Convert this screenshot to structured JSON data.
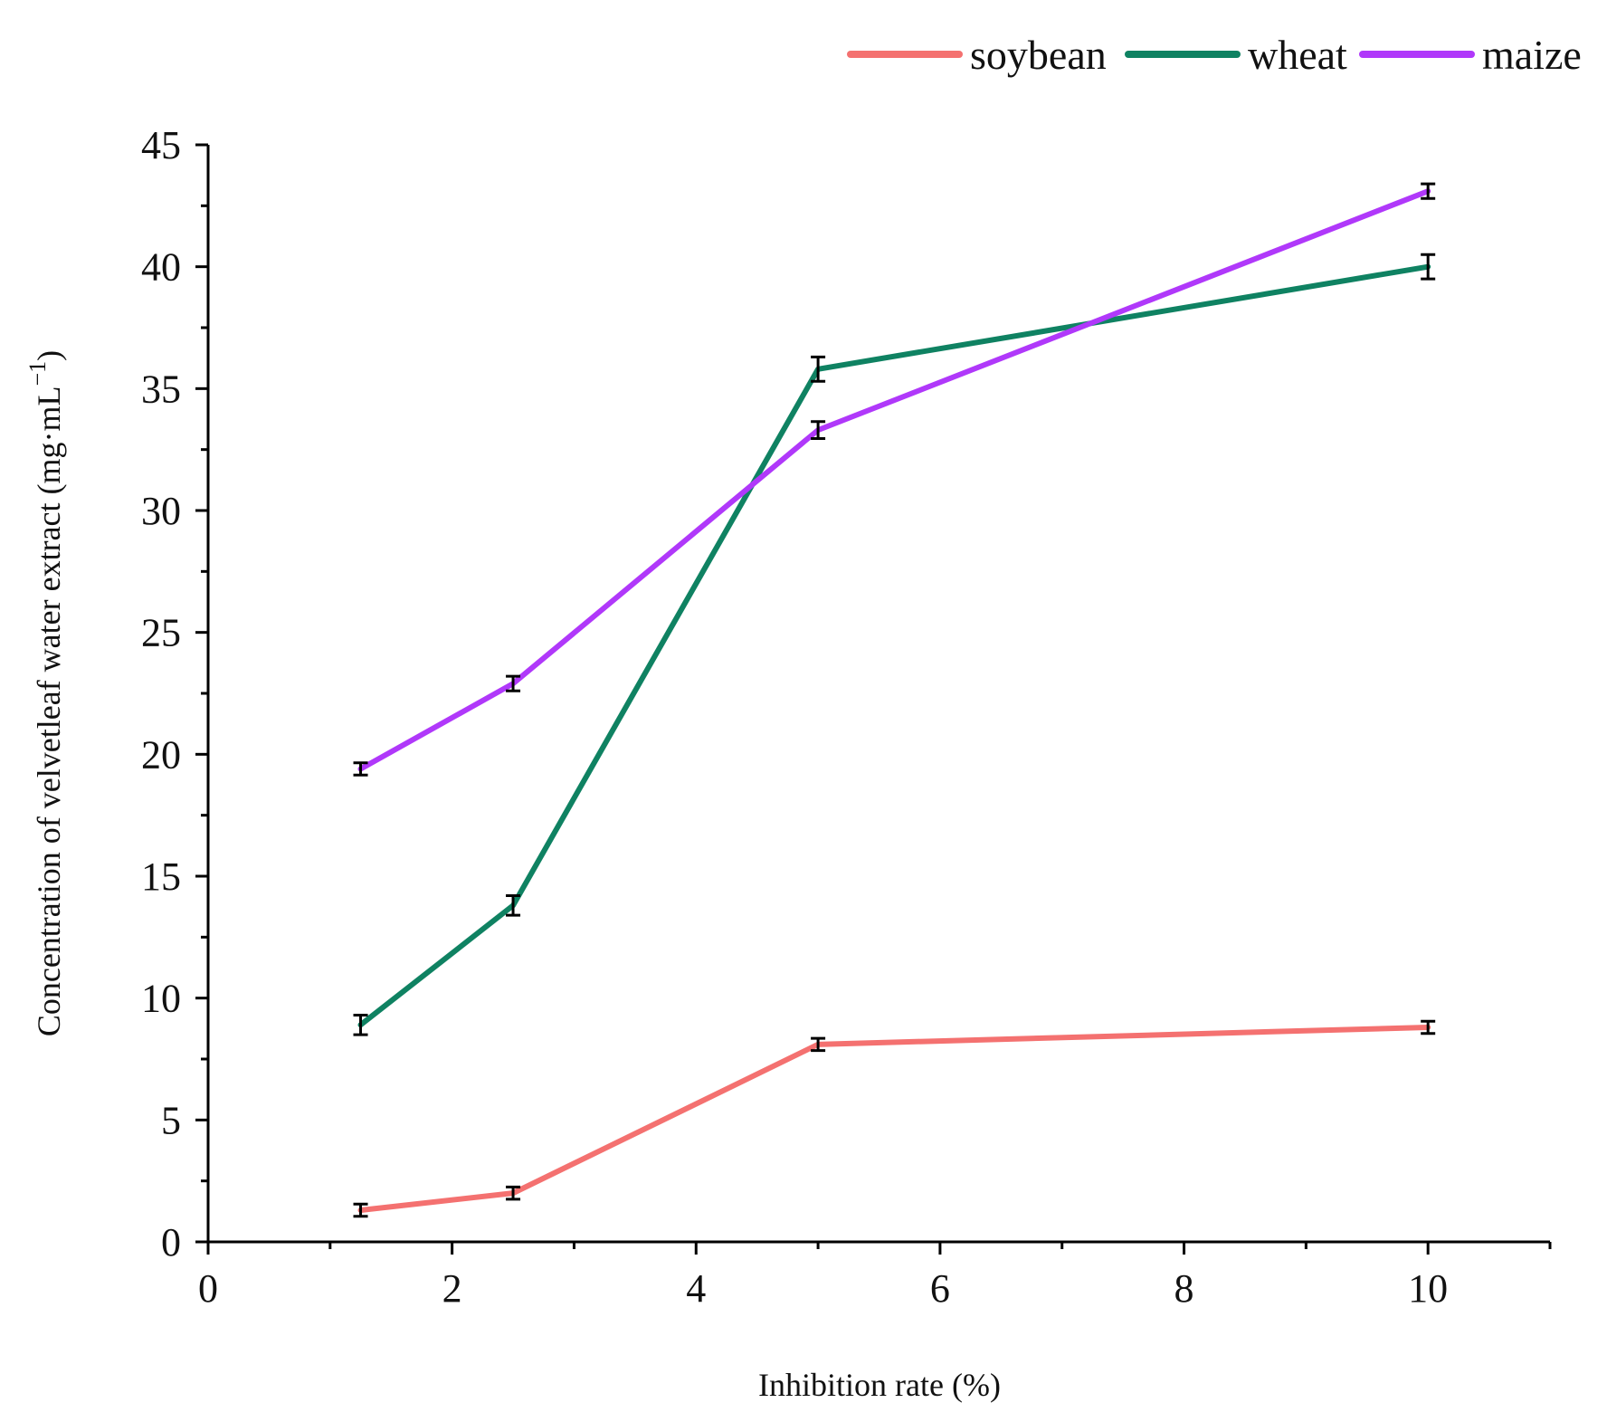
{
  "chart_data": {
    "type": "line",
    "title": "",
    "xlabel": "Inhibition rate (%)",
    "ylabel": "Concentration of velvetleaf water extract (mg·mL",
    "ylabel_superscript": "−1",
    "ylabel_close": ")",
    "xlim": [
      0,
      11
    ],
    "ylim": [
      0,
      45
    ],
    "xticks": [
      0,
      2,
      4,
      6,
      8,
      10
    ],
    "yticks": [
      0,
      5,
      10,
      15,
      20,
      25,
      30,
      35,
      40,
      45
    ],
    "grid": false,
    "legend_position": "top-right",
    "series": [
      {
        "name": "soybean",
        "color": "#f47170",
        "x": [
          1.25,
          2.5,
          5,
          10
        ],
        "y": [
          1.3,
          2.0,
          8.1,
          8.8
        ],
        "err": [
          0.25,
          0.25,
          0.25,
          0.25
        ]
      },
      {
        "name": "wheat",
        "color": "#0f8262",
        "x": [
          1.25,
          2.5,
          5,
          10
        ],
        "y": [
          8.9,
          13.8,
          35.8,
          40.0
        ],
        "err": [
          0.4,
          0.4,
          0.5,
          0.5
        ]
      },
      {
        "name": "maize",
        "color": "#b038fa",
        "x": [
          1.25,
          2.5,
          5,
          10
        ],
        "y": [
          19.4,
          22.9,
          33.3,
          43.1
        ],
        "err": [
          0.25,
          0.3,
          0.35,
          0.3
        ]
      }
    ]
  }
}
